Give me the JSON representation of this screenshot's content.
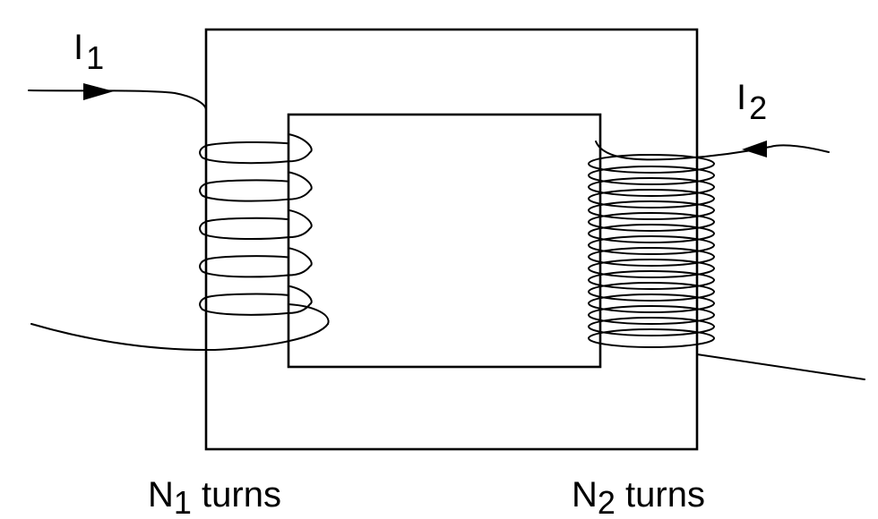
{
  "labels": {
    "current1": {
      "symbol": "I",
      "subscript": "1"
    },
    "current2": {
      "symbol": "I",
      "subscript": "2"
    },
    "winding1": {
      "symbol": "N",
      "subscript": "1",
      "suffix": " turns"
    },
    "winding2": {
      "symbol": "N",
      "subscript": "2",
      "suffix": " turns"
    }
  },
  "windings": {
    "primary_turns_drawn": 5,
    "secondary_turns_drawn": 16
  },
  "colors": {
    "stroke": "#000000",
    "background": "#ffffff"
  }
}
